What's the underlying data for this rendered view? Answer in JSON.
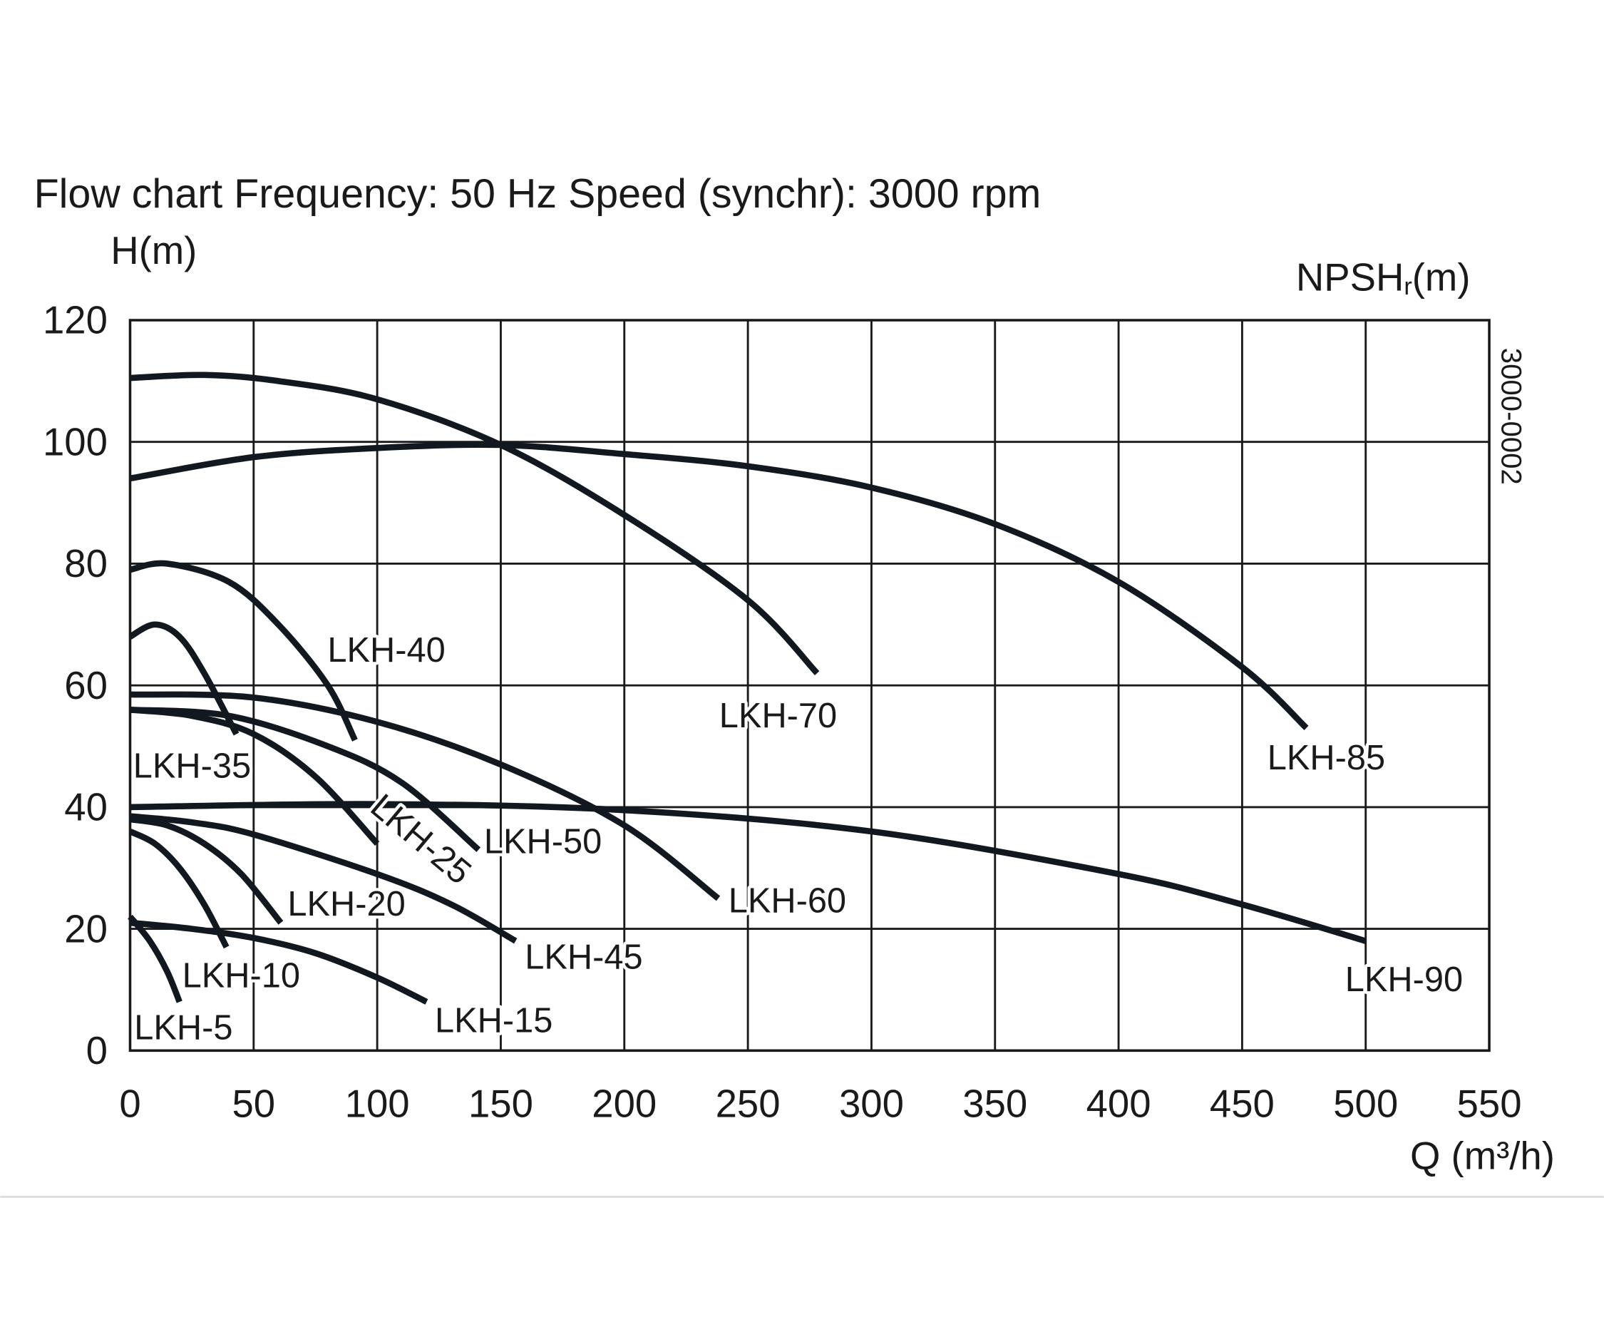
{
  "chart_data": {
    "type": "line",
    "title": "Flow chart Frequency: 50 Hz Speed (synchr): 3000 rpm",
    "ylabel": "H(m)",
    "ylabel_right": {
      "main": "NPSH",
      "sub": "r",
      "unit": "(m)"
    },
    "xlabel": "Q (m³/h)",
    "code": "3000-0002",
    "xlim": [
      0,
      550
    ],
    "ylim": [
      0,
      120
    ],
    "xticks": [
      0,
      50,
      100,
      150,
      200,
      250,
      300,
      350,
      400,
      450,
      500,
      550
    ],
    "yticks": [
      0,
      20,
      40,
      60,
      80,
      100,
      120
    ],
    "grid": true,
    "series": [
      {
        "name": "LKH-5",
        "points": [
          [
            0,
            22
          ],
          [
            8,
            18
          ],
          [
            15,
            13
          ],
          [
            20,
            8
          ]
        ]
      },
      {
        "name": "LKH-10",
        "points": [
          [
            0,
            36
          ],
          [
            10,
            34
          ],
          [
            20,
            30
          ],
          [
            30,
            24
          ],
          [
            39,
            17
          ]
        ]
      },
      {
        "name": "LKH-15",
        "points": [
          [
            0,
            21
          ],
          [
            25,
            20
          ],
          [
            50,
            18.5
          ],
          [
            75,
            16
          ],
          [
            100,
            12
          ],
          [
            120,
            8
          ]
        ]
      },
      {
        "name": "LKH-20",
        "points": [
          [
            0,
            38
          ],
          [
            15,
            37
          ],
          [
            30,
            34
          ],
          [
            45,
            29
          ],
          [
            61,
            21
          ]
        ]
      },
      {
        "name": "LKH-25",
        "points": [
          [
            0,
            56
          ],
          [
            25,
            55
          ],
          [
            50,
            52
          ],
          [
            75,
            45
          ],
          [
            100,
            34
          ]
        ]
      },
      {
        "name": "LKH-35",
        "points": [
          [
            0,
            68
          ],
          [
            10,
            70
          ],
          [
            20,
            68
          ],
          [
            30,
            62
          ],
          [
            43,
            52
          ]
        ]
      },
      {
        "name": "LKH-40",
        "points": [
          [
            0,
            79
          ],
          [
            15,
            80
          ],
          [
            40,
            77
          ],
          [
            60,
            70
          ],
          [
            80,
            60
          ],
          [
            91,
            51
          ]
        ]
      },
      {
        "name": "LKH-45",
        "points": [
          [
            0,
            38.5
          ],
          [
            25,
            37.5
          ],
          [
            50,
            35.5
          ],
          [
            100,
            29
          ],
          [
            130,
            24
          ],
          [
            156,
            18
          ]
        ]
      },
      {
        "name": "LKH-50",
        "points": [
          [
            0,
            56
          ],
          [
            40,
            55
          ],
          [
            80,
            50
          ],
          [
            110,
            44
          ],
          [
            141,
            33
          ]
        ]
      },
      {
        "name": "LKH-60",
        "points": [
          [
            0,
            58.5
          ],
          [
            50,
            58
          ],
          [
            100,
            54
          ],
          [
            150,
            47
          ],
          [
            200,
            37
          ],
          [
            238,
            25
          ]
        ]
      },
      {
        "name": "LKH-70",
        "points": [
          [
            0,
            110.5
          ],
          [
            30,
            111
          ],
          [
            60,
            110
          ],
          [
            100,
            107
          ],
          [
            150,
            99.5
          ],
          [
            200,
            88
          ],
          [
            250,
            74
          ],
          [
            278,
            62
          ]
        ]
      },
      {
        "name": "LKH-85",
        "points": [
          [
            0,
            94
          ],
          [
            50,
            97.5
          ],
          [
            100,
            99
          ],
          [
            150,
            99.5
          ],
          [
            200,
            98
          ],
          [
            250,
            96
          ],
          [
            300,
            92.5
          ],
          [
            350,
            86.5
          ],
          [
            400,
            77
          ],
          [
            450,
            63
          ],
          [
            476,
            53
          ]
        ]
      },
      {
        "name": "LKH-90",
        "points": [
          [
            0,
            40
          ],
          [
            100,
            40.5
          ],
          [
            200,
            39.5
          ],
          [
            300,
            36
          ],
          [
            400,
            29
          ],
          [
            450,
            24
          ],
          [
            500,
            18
          ]
        ]
      }
    ]
  }
}
